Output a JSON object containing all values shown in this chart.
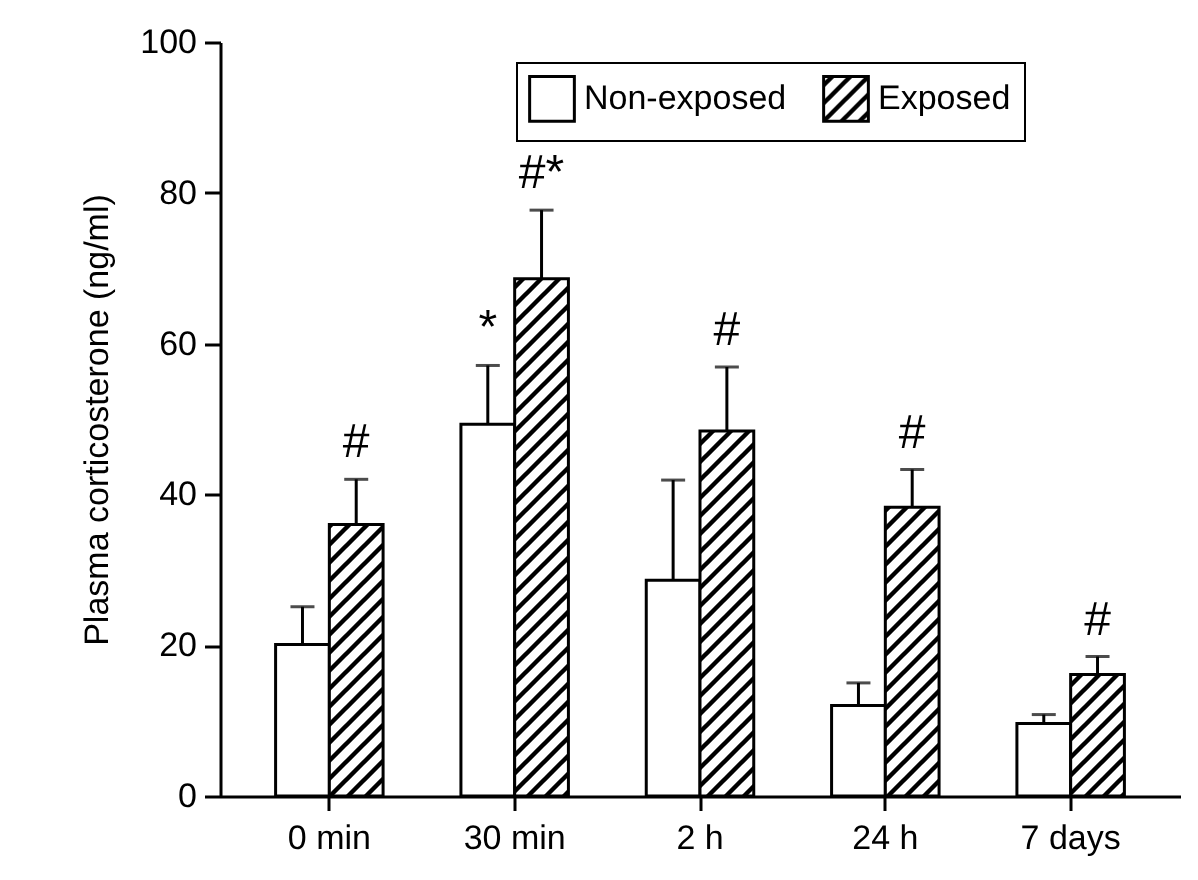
{
  "chart_data": {
    "type": "bar",
    "ylabel": "Plasma corticosterone (ng/ml)",
    "categories": [
      "0 min",
      "30 min",
      "2 h",
      "24 h",
      "7 days"
    ],
    "series": [
      {
        "name": "Non-exposed",
        "color": "#ffffff",
        "values": [
          20.1,
          49.3,
          28.6,
          12.0,
          9.6
        ],
        "errors": [
          [
            20.1,
            25.1
          ],
          [
            49.3,
            57.1
          ],
          [
            28.6,
            41.9
          ],
          [
            12.0,
            15.0
          ],
          [
            9.6,
            10.8
          ]
        ]
      },
      {
        "name": "Exposed",
        "color": "#000000",
        "values": [
          36.0,
          68.6,
          48.4,
          38.3,
          16.1
        ],
        "errors": [
          [
            36.0,
            42.0
          ],
          [
            68.6,
            77.7
          ],
          [
            48.4,
            56.9
          ],
          [
            38.3,
            43.3
          ],
          [
            16.1,
            18.5
          ]
        ]
      }
    ],
    "annotations": [
      {
        "text": "#",
        "x": "0 min",
        "y": 36.0
      },
      {
        "text": "*",
        "x": "30 min",
        "y": 49.3
      },
      {
        "text": "#*",
        "x": "30 min",
        "y": 68.6
      },
      {
        "text": "#",
        "x": "2 h",
        "y": 48.4
      },
      {
        "text": "#",
        "x": "24 h",
        "y": 38.3
      },
      {
        "text": "#",
        "x": "7 days",
        "y": 16.1
      }
    ],
    "ylim": [
      0,
      100
    ],
    "yticks": [
      0,
      20,
      40,
      60,
      80,
      100
    ],
    "grid": false,
    "legend": "top"
  }
}
